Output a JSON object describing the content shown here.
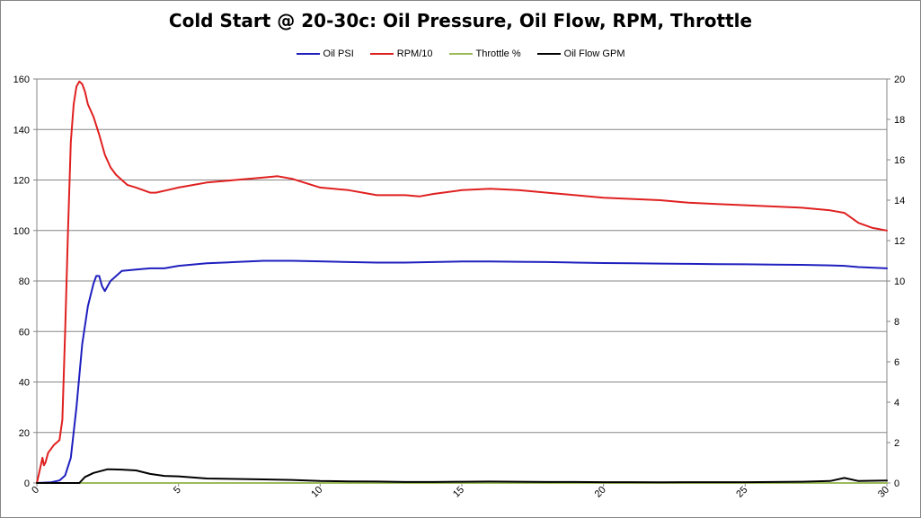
{
  "chart_data": {
    "type": "line",
    "title": "Cold Start @ 20-30c: Oil Pressure, Oil Flow, RPM, Throttle",
    "xlim": [
      0,
      30
    ],
    "x_ticks": [
      "0",
      "5",
      "10",
      "15",
      "20",
      "25",
      "30"
    ],
    "ylim_left": [
      0,
      160
    ],
    "y_ticks_left": [
      "0",
      "20",
      "40",
      "60",
      "80",
      "100",
      "120",
      "140",
      "160"
    ],
    "ylim_right": [
      0,
      20
    ],
    "y_ticks_right": [
      "0",
      "2",
      "4",
      "6",
      "8",
      "10",
      "12",
      "14",
      "16",
      "18",
      "20"
    ],
    "grid": true,
    "legend_position": "top",
    "series": [
      {
        "name": "Oil PSI",
        "color": "#1f1fbf",
        "axis": "left",
        "points": [
          [
            0,
            0
          ],
          [
            0.5,
            0.3
          ],
          [
            0.8,
            1
          ],
          [
            1,
            3
          ],
          [
            1.2,
            10
          ],
          [
            1.4,
            30
          ],
          [
            1.6,
            55
          ],
          [
            1.8,
            70
          ],
          [
            2,
            79
          ],
          [
            2.1,
            82
          ],
          [
            2.2,
            82
          ],
          [
            2.3,
            78
          ],
          [
            2.4,
            76
          ],
          [
            2.5,
            78
          ],
          [
            2.6,
            80
          ],
          [
            2.8,
            82
          ],
          [
            3,
            84
          ],
          [
            3.5,
            84.5
          ],
          [
            4,
            85
          ],
          [
            4.5,
            85
          ],
          [
            5,
            86
          ],
          [
            6,
            87
          ],
          [
            7,
            87.5
          ],
          [
            8,
            88
          ],
          [
            9,
            88
          ],
          [
            10,
            87.8
          ],
          [
            11,
            87.5
          ],
          [
            12,
            87.3
          ],
          [
            13,
            87.3
          ],
          [
            14,
            87.5
          ],
          [
            15,
            87.7
          ],
          [
            16,
            87.7
          ],
          [
            17,
            87.6
          ],
          [
            18,
            87.5
          ],
          [
            19,
            87.3
          ],
          [
            20,
            87.1
          ],
          [
            21,
            87
          ],
          [
            22,
            86.9
          ],
          [
            23,
            86.8
          ],
          [
            24,
            86.7
          ],
          [
            25,
            86.6
          ],
          [
            26,
            86.5
          ],
          [
            27,
            86.4
          ],
          [
            28,
            86.2
          ],
          [
            28.5,
            86
          ],
          [
            29,
            85.5
          ],
          [
            30,
            85
          ]
        ]
      },
      {
        "name": "RPM/10",
        "color": "#e02020",
        "axis": "left",
        "points": [
          [
            0,
            0
          ],
          [
            0.1,
            5
          ],
          [
            0.2,
            10
          ],
          [
            0.25,
            7
          ],
          [
            0.3,
            8
          ],
          [
            0.4,
            12
          ],
          [
            0.6,
            15
          ],
          [
            0.8,
            17
          ],
          [
            0.9,
            25
          ],
          [
            1,
            60
          ],
          [
            1.1,
            100
          ],
          [
            1.2,
            135
          ],
          [
            1.3,
            150
          ],
          [
            1.4,
            157
          ],
          [
            1.5,
            159
          ],
          [
            1.6,
            158
          ],
          [
            1.7,
            155
          ],
          [
            1.8,
            150
          ],
          [
            2,
            145
          ],
          [
            2.2,
            138
          ],
          [
            2.4,
            130
          ],
          [
            2.6,
            125
          ],
          [
            2.8,
            122
          ],
          [
            3,
            120
          ],
          [
            3.2,
            118
          ],
          [
            3.5,
            117
          ],
          [
            4,
            115
          ],
          [
            4.2,
            115
          ],
          [
            4.6,
            116
          ],
          [
            5,
            117
          ],
          [
            5.5,
            118
          ],
          [
            6,
            119
          ],
          [
            7,
            120
          ],
          [
            8,
            121
          ],
          [
            8.5,
            121.5
          ],
          [
            9,
            120.5
          ],
          [
            10,
            117
          ],
          [
            11,
            116
          ],
          [
            12,
            114
          ],
          [
            13,
            114
          ],
          [
            13.5,
            113.5
          ],
          [
            14,
            114.5
          ],
          [
            15,
            116
          ],
          [
            16,
            116.5
          ],
          [
            17,
            116
          ],
          [
            18,
            115
          ],
          [
            19,
            114
          ],
          [
            20,
            113
          ],
          [
            21,
            112.5
          ],
          [
            22,
            112
          ],
          [
            23,
            111
          ],
          [
            24,
            110.5
          ],
          [
            25,
            110
          ],
          [
            26,
            109.5
          ],
          [
            27,
            109
          ],
          [
            28,
            108
          ],
          [
            28.5,
            107
          ],
          [
            29,
            103
          ],
          [
            29.5,
            101
          ],
          [
            30,
            100
          ]
        ]
      },
      {
        "name": "Throttle %",
        "color": "#9bbb59",
        "axis": "left",
        "points": [
          [
            0,
            0
          ],
          [
            30,
            0
          ]
        ]
      },
      {
        "name": "Oil Flow GPM",
        "color": "#000000",
        "axis": "right",
        "points": [
          [
            0,
            0
          ],
          [
            1.5,
            0
          ],
          [
            1.7,
            0.3
          ],
          [
            2,
            0.5
          ],
          [
            2.5,
            0.68
          ],
          [
            3,
            0.66
          ],
          [
            3.5,
            0.62
          ],
          [
            4,
            0.45
          ],
          [
            4.5,
            0.35
          ],
          [
            5,
            0.33
          ],
          [
            6,
            0.22
          ],
          [
            7,
            0.2
          ],
          [
            8,
            0.18
          ],
          [
            9,
            0.15
          ],
          [
            10,
            0.1
          ],
          [
            11,
            0.08
          ],
          [
            12,
            0.07
          ],
          [
            13,
            0.05
          ],
          [
            14,
            0.05
          ],
          [
            15,
            0.06
          ],
          [
            16,
            0.07
          ],
          [
            17,
            0.06
          ],
          [
            18,
            0.05
          ],
          [
            19,
            0.05
          ],
          [
            20,
            0.04
          ],
          [
            21,
            0.04
          ],
          [
            22,
            0.03
          ],
          [
            23,
            0.04
          ],
          [
            24,
            0.04
          ],
          [
            25,
            0.04
          ],
          [
            26,
            0.05
          ],
          [
            27,
            0.06
          ],
          [
            28,
            0.1
          ],
          [
            28.5,
            0.25
          ],
          [
            29,
            0.1
          ],
          [
            30,
            0.12
          ]
        ]
      }
    ]
  }
}
